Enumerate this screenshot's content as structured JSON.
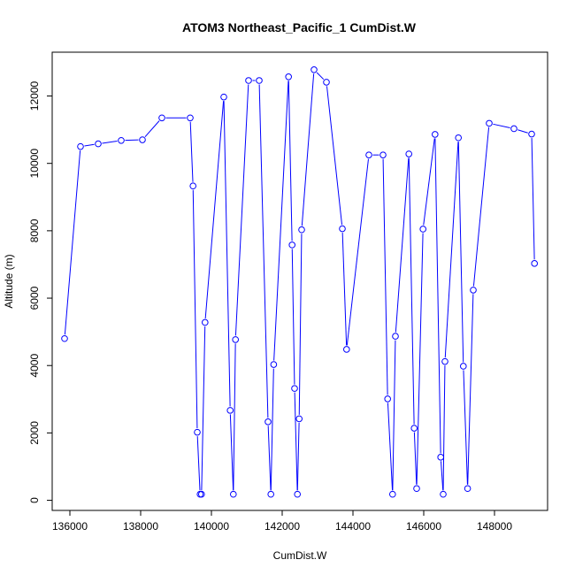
{
  "chart_data": {
    "type": "line",
    "title": "ATOM3 Northeast_Pacific_1 CumDist.W",
    "xlabel": "CumDist.W",
    "ylabel": "Altitude (m)",
    "xlim": [
      135500,
      149500
    ],
    "ylim": [
      -300,
      13300
    ],
    "x_ticks": [
      136000,
      138000,
      140000,
      142000,
      144000,
      146000,
      148000
    ],
    "x_tick_labels": [
      "136000",
      "138000",
      "140000",
      "142000",
      "144000",
      "146000",
      "148000"
    ],
    "y_ticks": [
      0,
      2000,
      4000,
      6000,
      8000,
      10000,
      12000
    ],
    "y_tick_labels": [
      "0",
      "2000",
      "4000",
      "6000",
      "8000",
      "10000",
      "12000"
    ],
    "grid": false,
    "series": [
      {
        "color": "#0000ff",
        "marker": "open-circle",
        "x": [
          135850,
          136300,
          136800,
          137450,
          138050,
          138600,
          139400,
          139480,
          139600,
          139680,
          139720,
          139820,
          140350,
          140530,
          140620,
          140680,
          141050,
          141350,
          141600,
          141680,
          141760,
          142180,
          142280,
          142350,
          142430,
          142480,
          142550,
          142900,
          143250,
          143700,
          143820,
          144450,
          144850,
          144980,
          145120,
          145200,
          145580,
          145730,
          145800,
          145980,
          146320,
          146480,
          146550,
          146600,
          146980,
          147120,
          147240,
          147400,
          147850,
          148550,
          149050,
          149130
        ],
        "y": [
          4800,
          10500,
          10580,
          10680,
          10700,
          11350,
          11350,
          9330,
          2020,
          180,
          180,
          5280,
          11970,
          2670,
          180,
          4770,
          12460,
          12460,
          2330,
          180,
          4030,
          12570,
          7580,
          3320,
          180,
          2420,
          8030,
          12780,
          12410,
          8060,
          4480,
          10250,
          10250,
          3010,
          180,
          4870,
          10280,
          2140,
          350,
          8050,
          10860,
          1280,
          180,
          4120,
          10760,
          3980,
          350,
          6240,
          11190,
          11030,
          10870,
          7030
        ]
      }
    ]
  }
}
